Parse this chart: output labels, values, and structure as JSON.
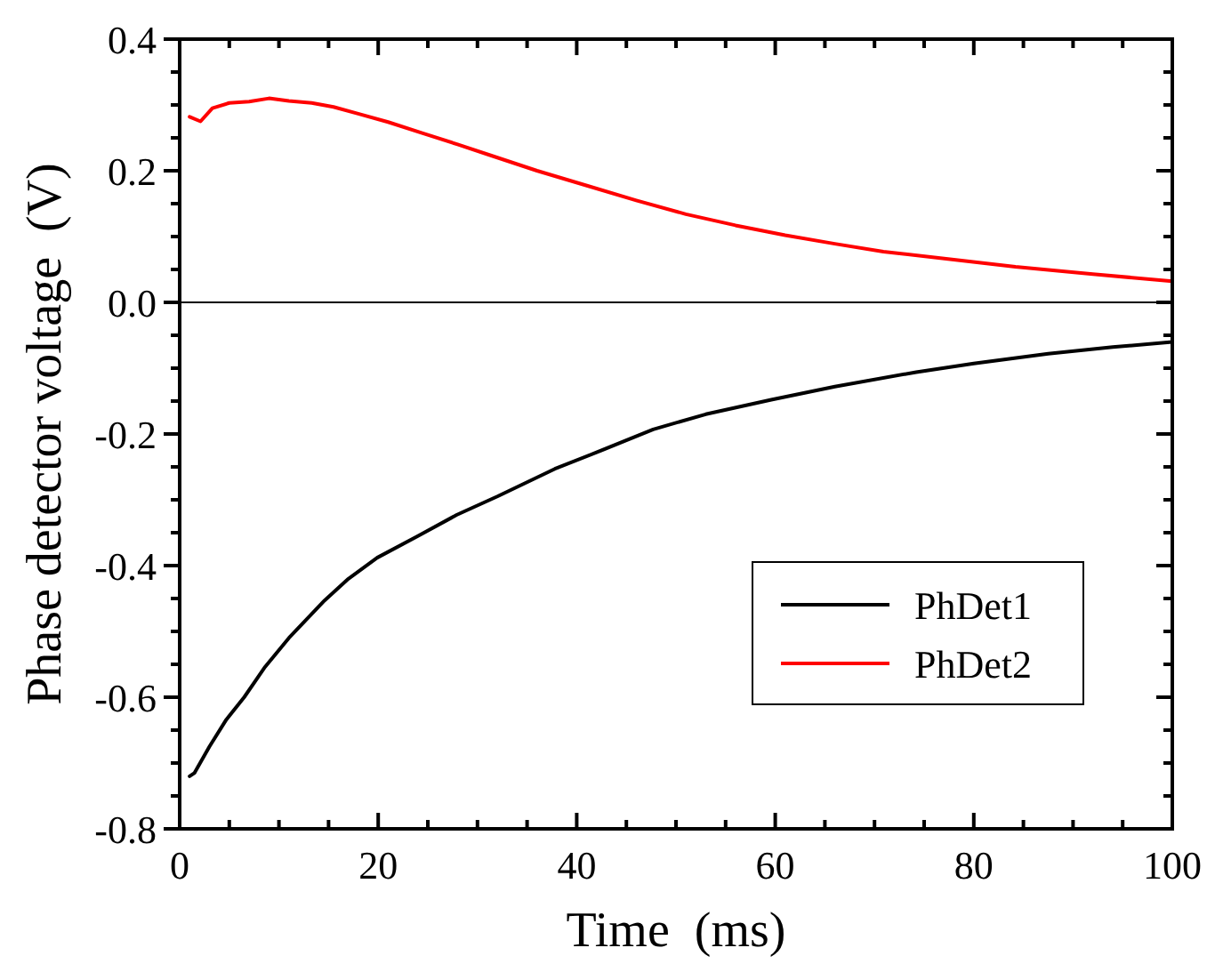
{
  "chart_data": {
    "type": "line",
    "xlabel": "Time  (ms)",
    "ylabel": "Phase detector voltage  (V)",
    "xlim": [
      0,
      100
    ],
    "ylim": [
      -0.8,
      0.4
    ],
    "xticks": [
      0,
      {
        "value": 5,
        "label": null
      },
      {
        "value": 10,
        "label": null
      },
      {
        "value": 15,
        "label": null
      },
      20,
      {
        "value": 25,
        "label": null
      },
      {
        "value": 30,
        "label": null
      },
      {
        "value": 35,
        "label": null
      },
      40,
      {
        "value": 45,
        "label": null
      },
      {
        "value": 50,
        "label": null
      },
      {
        "value": 55,
        "label": null
      },
      60,
      {
        "value": 65,
        "label": null
      },
      {
        "value": 70,
        "label": null
      },
      {
        "value": 75,
        "label": null
      },
      80,
      {
        "value": 85,
        "label": null
      },
      {
        "value": 90,
        "label": null
      },
      {
        "value": 95,
        "label": null
      },
      100
    ],
    "yticks": [
      {
        "value": -0.8,
        "label": "-0.8"
      },
      {
        "value": -0.75,
        "label": null
      },
      {
        "value": -0.7,
        "label": null
      },
      {
        "value": -0.65,
        "label": null
      },
      {
        "value": -0.6,
        "label": "-0.6"
      },
      {
        "value": -0.55,
        "label": null
      },
      {
        "value": -0.5,
        "label": null
      },
      {
        "value": -0.45,
        "label": null
      },
      {
        "value": -0.4,
        "label": "-0.4"
      },
      {
        "value": -0.35,
        "label": null
      },
      {
        "value": -0.3,
        "label": null
      },
      {
        "value": -0.25,
        "label": null
      },
      {
        "value": -0.2,
        "label": "-0.2"
      },
      {
        "value": -0.15,
        "label": null
      },
      {
        "value": -0.1,
        "label": null
      },
      {
        "value": -0.05,
        "label": null
      },
      {
        "value": 0,
        "label": "0.0"
      },
      {
        "value": 0.05,
        "label": null
      },
      {
        "value": 0.1,
        "label": null
      },
      {
        "value": 0.15,
        "label": null
      },
      {
        "value": 0.2,
        "label": "0.2"
      },
      {
        "value": 0.25,
        "label": null
      },
      {
        "value": 0.3,
        "label": null
      },
      {
        "value": 0.35,
        "label": null
      },
      {
        "value": 0.4,
        "label": "0.4"
      }
    ],
    "ref_lines": [
      {
        "axis": "y",
        "value": 0,
        "color": "#000000"
      }
    ],
    "legend": "bottom right",
    "grid": false,
    "series": [
      {
        "name": "PhDet1",
        "color": "#000000",
        "x": [
          1,
          1.5,
          3,
          4.7,
          6.5,
          8.6,
          11,
          14.6,
          17,
          19.9,
          24,
          27.9,
          32,
          37.8,
          42,
          47.7,
          53,
          59.6,
          66,
          74.2,
          80,
          87.5,
          94,
          100
        ],
        "values": [
          -0.72,
          -0.715,
          -0.675,
          -0.634,
          -0.6,
          -0.554,
          -0.51,
          -0.453,
          -0.42,
          -0.388,
          -0.355,
          -0.323,
          -0.295,
          -0.253,
          -0.228,
          -0.193,
          -0.17,
          -0.148,
          -0.128,
          -0.106,
          -0.093,
          -0.078,
          -0.068,
          -0.06
        ]
      },
      {
        "name": "PhDet2",
        "color": "#ff0000",
        "x": [
          1,
          2.1,
          3.3,
          5,
          7,
          9,
          11,
          13.3,
          15.5,
          17.9,
          21,
          24.5,
          28,
          31.2,
          36,
          41.1,
          46,
          51,
          56,
          61,
          66,
          70.9,
          78,
          84.2,
          92,
          100
        ],
        "values": [
          0.282,
          0.275,
          0.295,
          0.303,
          0.305,
          0.31,
          0.306,
          0.303,
          0.297,
          0.287,
          0.274,
          0.257,
          0.24,
          0.224,
          0.2,
          0.177,
          0.155,
          0.134,
          0.117,
          0.102,
          0.089,
          0.077,
          0.065,
          0.054,
          0.043,
          0.032
        ]
      }
    ]
  }
}
